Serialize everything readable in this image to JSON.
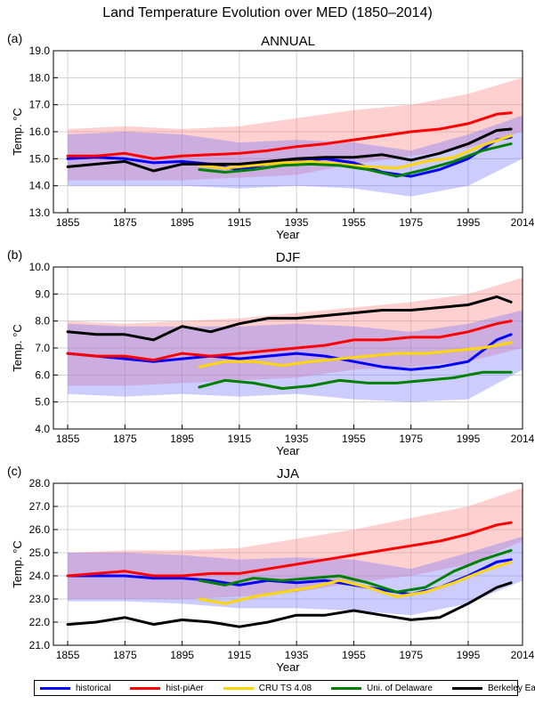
{
  "title": "Land Temperature Evolution over MED (1850–2014)",
  "colors": {
    "historical": "#0000ff",
    "hist_piAer": "#ff0000",
    "cru": "#ffd700",
    "delaware": "#008000",
    "berkeley": "#000000",
    "hist_band": "rgba(110,110,255,0.35)",
    "piaer_band": "rgba(255,120,120,0.35)"
  },
  "legend": [
    {
      "key": "historical",
      "label": "historical"
    },
    {
      "key": "hist_piAer",
      "label": "hist-piAer"
    },
    {
      "key": "cru",
      "label": "CRU TS 4.08"
    },
    {
      "key": "delaware",
      "label": "Uni. of Delaware"
    },
    {
      "key": "berkeley",
      "label": "Berkeley Earth"
    }
  ],
  "chart_data": [
    {
      "type": "line",
      "panel": "(a)",
      "title": "ANNUAL",
      "xlabel": "Year",
      "ylabel": "Temp. °C",
      "xlim": [
        1850,
        2014
      ],
      "ylim": [
        13.0,
        19.0
      ],
      "xticks": [
        1855,
        1875,
        1895,
        1915,
        1935,
        1955,
        1975,
        1995,
        2014
      ],
      "yticks": [
        13.0,
        14.0,
        15.0,
        16.0,
        17.0,
        18.0,
        19.0
      ],
      "grid": true,
      "series": [
        {
          "name": "historical",
          "x": [
            1855,
            1865,
            1875,
            1885,
            1895,
            1905,
            1915,
            1925,
            1935,
            1945,
            1955,
            1965,
            1975,
            1985,
            1995,
            2005,
            2010
          ],
          "y": [
            15.0,
            15.05,
            15.0,
            14.85,
            14.9,
            14.8,
            14.6,
            14.8,
            14.9,
            15.0,
            14.85,
            14.5,
            14.35,
            14.6,
            15.0,
            15.7,
            15.8
          ]
        },
        {
          "name": "hist-piAer",
          "x": [
            1855,
            1865,
            1875,
            1885,
            1895,
            1905,
            1915,
            1925,
            1935,
            1945,
            1955,
            1965,
            1975,
            1985,
            1995,
            2005,
            2010
          ],
          "y": [
            15.1,
            15.1,
            15.2,
            15.0,
            15.1,
            15.15,
            15.2,
            15.3,
            15.45,
            15.55,
            15.7,
            15.85,
            16.0,
            16.1,
            16.3,
            16.65,
            16.7
          ]
        },
        {
          "name": "CRU TS 4.08",
          "x": [
            1901,
            1910,
            1920,
            1930,
            1940,
            1950,
            1960,
            1970,
            1980,
            1990,
            2000,
            2010
          ],
          "y": [
            14.75,
            14.65,
            14.75,
            14.85,
            14.9,
            14.8,
            14.7,
            14.65,
            14.9,
            15.05,
            15.5,
            15.85
          ]
        },
        {
          "name": "Uni. of Delaware",
          "x": [
            1901,
            1910,
            1920,
            1930,
            1940,
            1950,
            1960,
            1970,
            1980,
            1990,
            2000,
            2010
          ],
          "y": [
            14.6,
            14.5,
            14.6,
            14.75,
            14.8,
            14.75,
            14.6,
            14.35,
            14.6,
            14.9,
            15.3,
            15.55
          ]
        },
        {
          "name": "Berkeley Earth",
          "x": [
            1855,
            1865,
            1875,
            1885,
            1895,
            1905,
            1915,
            1925,
            1935,
            1945,
            1955,
            1965,
            1975,
            1985,
            1995,
            2005,
            2010
          ],
          "y": [
            14.7,
            14.8,
            14.9,
            14.55,
            14.8,
            14.8,
            14.8,
            14.9,
            15.0,
            15.05,
            15.05,
            15.15,
            14.95,
            15.2,
            15.55,
            16.05,
            16.1
          ]
        }
      ],
      "bands": [
        {
          "name": "hist-piAer",
          "x": [
            1855,
            1875,
            1895,
            1915,
            1935,
            1955,
            1975,
            1995,
            2014
          ],
          "lo": [
            14.2,
            14.2,
            14.2,
            14.3,
            14.4,
            14.8,
            15.1,
            15.4,
            16.0
          ],
          "hi": [
            16.1,
            16.2,
            16.1,
            16.2,
            16.5,
            16.8,
            17.0,
            17.4,
            18.0
          ]
        },
        {
          "name": "historical",
          "x": [
            1855,
            1875,
            1895,
            1915,
            1935,
            1955,
            1975,
            1995,
            2014
          ],
          "lo": [
            14.0,
            14.0,
            14.0,
            13.9,
            14.0,
            13.9,
            13.6,
            14.0,
            15.0
          ],
          "hi": [
            15.9,
            16.0,
            15.9,
            15.6,
            15.7,
            15.6,
            15.3,
            15.9,
            16.6
          ]
        }
      ]
    },
    {
      "type": "line",
      "panel": "(b)",
      "title": "DJF",
      "xlabel": "Year",
      "ylabel": "Temp. °C",
      "xlim": [
        1850,
        2014
      ],
      "ylim": [
        4.0,
        10.0
      ],
      "xticks": [
        1855,
        1875,
        1895,
        1915,
        1935,
        1955,
        1975,
        1995,
        2014
      ],
      "yticks": [
        4.0,
        5.0,
        6.0,
        7.0,
        8.0,
        9.0,
        10.0
      ],
      "grid": true,
      "series": [
        {
          "name": "historical",
          "x": [
            1855,
            1865,
            1875,
            1885,
            1895,
            1905,
            1915,
            1925,
            1935,
            1945,
            1955,
            1965,
            1975,
            1985,
            1995,
            2005,
            2010
          ],
          "y": [
            6.8,
            6.7,
            6.6,
            6.5,
            6.6,
            6.7,
            6.6,
            6.7,
            6.8,
            6.7,
            6.5,
            6.3,
            6.2,
            6.3,
            6.5,
            7.3,
            7.5
          ]
        },
        {
          "name": "hist-piAer",
          "x": [
            1855,
            1865,
            1875,
            1885,
            1895,
            1905,
            1915,
            1925,
            1935,
            1945,
            1955,
            1965,
            1975,
            1985,
            1995,
            2005,
            2010
          ],
          "y": [
            6.8,
            6.7,
            6.7,
            6.55,
            6.8,
            6.7,
            6.8,
            6.9,
            7.0,
            7.1,
            7.3,
            7.3,
            7.4,
            7.4,
            7.6,
            7.9,
            8.0
          ]
        },
        {
          "name": "CRU TS 4.08",
          "x": [
            1901,
            1910,
            1920,
            1930,
            1940,
            1950,
            1960,
            1970,
            1980,
            1990,
            2000,
            2010
          ],
          "y": [
            6.3,
            6.5,
            6.5,
            6.35,
            6.5,
            6.6,
            6.7,
            6.8,
            6.8,
            6.9,
            7.0,
            7.2
          ]
        },
        {
          "name": "Uni. of Delaware",
          "x": [
            1901,
            1910,
            1920,
            1930,
            1940,
            1950,
            1960,
            1970,
            1980,
            1990,
            2000,
            2010
          ],
          "y": [
            5.55,
            5.8,
            5.7,
            5.5,
            5.6,
            5.8,
            5.7,
            5.7,
            5.8,
            5.9,
            6.1,
            6.1
          ]
        },
        {
          "name": "Berkeley Earth",
          "x": [
            1855,
            1865,
            1875,
            1885,
            1895,
            1905,
            1915,
            1925,
            1935,
            1945,
            1955,
            1965,
            1975,
            1985,
            1995,
            2005,
            2010
          ],
          "y": [
            7.6,
            7.5,
            7.5,
            7.3,
            7.8,
            7.6,
            7.9,
            8.1,
            8.1,
            8.2,
            8.3,
            8.4,
            8.4,
            8.5,
            8.6,
            8.9,
            8.7
          ]
        }
      ],
      "bands": [
        {
          "name": "hist-piAer",
          "x": [
            1855,
            1875,
            1895,
            1915,
            1935,
            1955,
            1975,
            1995,
            2014
          ],
          "lo": [
            5.6,
            5.6,
            5.7,
            5.8,
            5.9,
            6.2,
            6.3,
            6.5,
            7.0
          ],
          "hi": [
            8.0,
            7.9,
            8.0,
            8.1,
            8.3,
            8.5,
            8.7,
            9.0,
            9.6
          ]
        },
        {
          "name": "historical",
          "x": [
            1855,
            1875,
            1895,
            1915,
            1935,
            1955,
            1975,
            1995,
            2014
          ],
          "lo": [
            5.3,
            5.2,
            5.3,
            5.2,
            5.3,
            5.1,
            5.0,
            5.1,
            6.2
          ],
          "hi": [
            7.9,
            7.8,
            7.8,
            7.8,
            7.9,
            7.8,
            7.6,
            7.9,
            8.4
          ]
        }
      ]
    },
    {
      "type": "line",
      "panel": "(c)",
      "title": "JJA",
      "xlabel": "Year",
      "ylabel": "Temp. °C",
      "xlim": [
        1850,
        2014
      ],
      "ylim": [
        21.0,
        28.0
      ],
      "xticks": [
        1855,
        1875,
        1895,
        1915,
        1935,
        1955,
        1975,
        1995,
        2014
      ],
      "yticks": [
        21.0,
        22.0,
        23.0,
        24.0,
        25.0,
        26.0,
        27.0,
        28.0
      ],
      "grid": true,
      "series": [
        {
          "name": "historical",
          "x": [
            1855,
            1865,
            1875,
            1885,
            1895,
            1905,
            1915,
            1925,
            1935,
            1945,
            1955,
            1965,
            1975,
            1985,
            1995,
            2005,
            2010
          ],
          "y": [
            24.0,
            24.0,
            24.0,
            23.9,
            23.9,
            23.8,
            23.6,
            23.8,
            23.7,
            23.8,
            23.6,
            23.4,
            23.2,
            23.5,
            24.0,
            24.6,
            24.7
          ]
        },
        {
          "name": "hist-piAer",
          "x": [
            1855,
            1865,
            1875,
            1885,
            1895,
            1905,
            1915,
            1925,
            1935,
            1945,
            1955,
            1965,
            1975,
            1985,
            1995,
            2005,
            2010
          ],
          "y": [
            24.0,
            24.1,
            24.2,
            24.0,
            24.0,
            24.1,
            24.1,
            24.3,
            24.5,
            24.7,
            24.9,
            25.1,
            25.3,
            25.5,
            25.8,
            26.2,
            26.3
          ]
        },
        {
          "name": "CRU TS 4.08",
          "x": [
            1901,
            1910,
            1920,
            1930,
            1940,
            1950,
            1960,
            1970,
            1980,
            1990,
            2000,
            2010
          ],
          "y": [
            23.0,
            22.8,
            23.1,
            23.3,
            23.5,
            23.8,
            23.5,
            23.1,
            23.3,
            23.7,
            24.2,
            24.6
          ]
        },
        {
          "name": "Uni. of Delaware",
          "x": [
            1901,
            1910,
            1920,
            1930,
            1940,
            1950,
            1960,
            1970,
            1980,
            1990,
            2000,
            2010
          ],
          "y": [
            23.8,
            23.6,
            23.9,
            23.8,
            23.9,
            24.0,
            23.7,
            23.3,
            23.5,
            24.2,
            24.7,
            25.1
          ]
        },
        {
          "name": "Berkeley Earth",
          "x": [
            1855,
            1865,
            1875,
            1885,
            1895,
            1905,
            1915,
            1925,
            1935,
            1945,
            1955,
            1965,
            1975,
            1985,
            1995,
            2005,
            2010
          ],
          "y": [
            21.9,
            22.0,
            22.2,
            21.9,
            22.1,
            22.0,
            21.8,
            22.0,
            22.3,
            22.3,
            22.5,
            22.3,
            22.1,
            22.2,
            22.8,
            23.5,
            23.7
          ]
        }
      ],
      "bands": [
        {
          "name": "hist-piAer",
          "x": [
            1855,
            1875,
            1895,
            1915,
            1935,
            1955,
            1975,
            1995,
            2014
          ],
          "lo": [
            23.0,
            23.0,
            23.0,
            23.1,
            23.3,
            23.7,
            24.0,
            24.5,
            25.5
          ],
          "hi": [
            25.0,
            25.1,
            25.1,
            25.2,
            25.6,
            26.0,
            26.5,
            27.0,
            27.8
          ]
        },
        {
          "name": "historical",
          "x": [
            1855,
            1875,
            1895,
            1915,
            1935,
            1955,
            1975,
            1995,
            2014
          ],
          "lo": [
            22.9,
            22.9,
            22.8,
            22.6,
            22.6,
            22.5,
            22.3,
            22.8,
            23.8
          ],
          "hi": [
            25.0,
            25.0,
            24.9,
            24.7,
            24.8,
            24.7,
            24.3,
            25.0,
            25.7
          ]
        }
      ]
    }
  ]
}
